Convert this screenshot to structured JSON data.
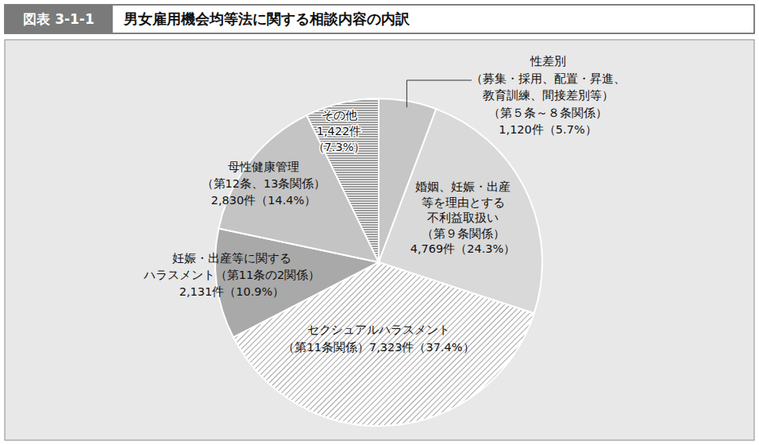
{
  "chart_data": {
    "type": "pie",
    "figure_label": "図表 3-1-1",
    "title": "男女雇用機会均等法に関する相談内容の内訳",
    "categories": [
      "性差別\n（募集・採用、配置・昇進、\n教育訓練、間接差別等）\n（第５条～８条関係）",
      "婚姻、妊娠・出産\n等を理由とする\n不利益取扱い\n（第９条関係）",
      "セクシュアルハラスメント\n（第11条関係）",
      "妊娠・出産等に関する\nハラスメント（第11条の2関係）",
      "母性健康管理\n（第12条、13条関係）",
      "その他"
    ],
    "values": [
      1120,
      4769,
      7323,
      2131,
      2830,
      1422
    ],
    "value_labels": [
      "1,120件",
      "4,769件",
      "7,323件",
      "2,131件",
      "2,830件",
      "1,422件"
    ],
    "percentages": [
      5.7,
      24.3,
      37.4,
      10.9,
      14.4,
      7.3
    ],
    "percentage_labels": [
      "（5.7%）",
      "（24.3%）",
      "（37.4%）",
      "（10.9%）",
      "（14.4%）",
      "（7.3%）"
    ],
    "colors": [
      "#c6c6c6",
      "#d9d9d9",
      "#8c8c8c",
      "#a9a9a9",
      "#c4c4c4",
      "#5a5a5a"
    ],
    "data_labels": true
  }
}
